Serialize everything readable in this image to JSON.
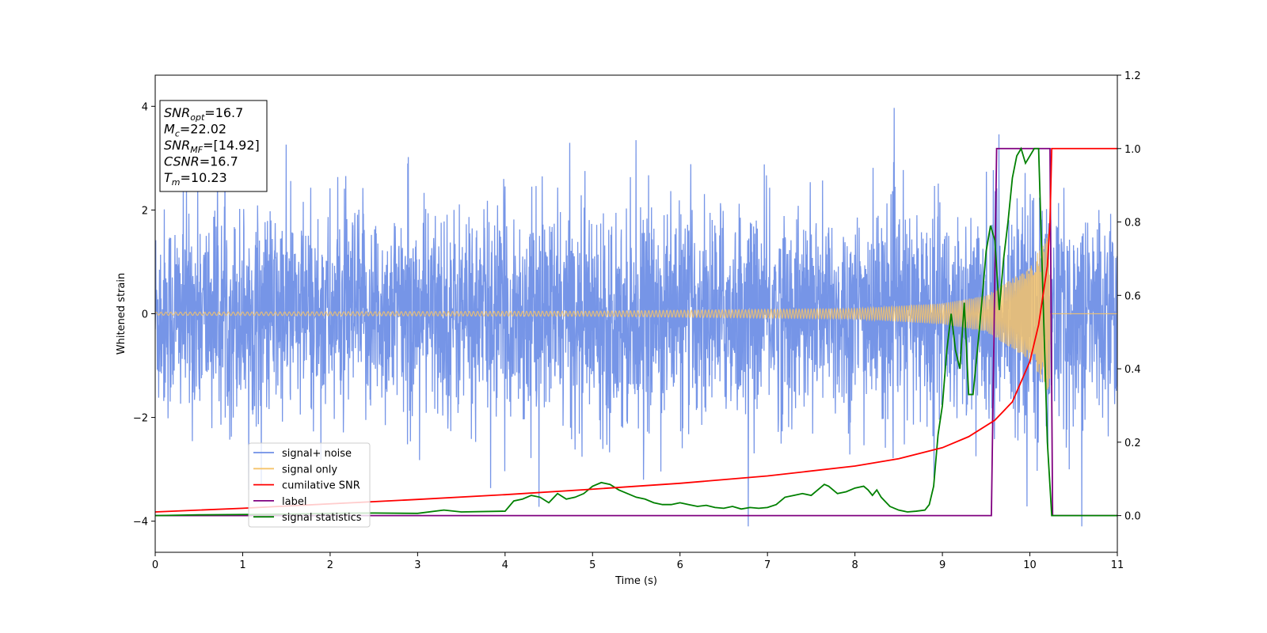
{
  "chart_data": {
    "type": "line",
    "xlabel": "Time (s)",
    "ylabel": "Whitened strain",
    "xlim": [
      0,
      11
    ],
    "ylim_left": [
      -4.6,
      4.6
    ],
    "ylim_right": [
      -0.1,
      1.2
    ],
    "x_ticks": [
      0,
      1,
      2,
      3,
      4,
      5,
      6,
      7,
      8,
      9,
      10,
      11
    ],
    "y_left_ticks": [
      -4,
      -2,
      0,
      2,
      4
    ],
    "y_left_tick_labels": [
      "−4",
      "−2",
      "0",
      "2",
      "4"
    ],
    "y_right_ticks": [
      0.0,
      0.2,
      0.4,
      0.6,
      0.8,
      1.0,
      1.2
    ],
    "y_right_tick_labels": [
      "0.0",
      "0.2",
      "0.4",
      "0.6",
      "0.8",
      "1.0",
      "1.2"
    ],
    "legend_position": "lower-left",
    "grid": false,
    "info_box": [
      {
        "base": "SNR",
        "sub": "opt",
        "rest": "=16.7"
      },
      {
        "base": "M",
        "sub": "c",
        "rest": "=22.02"
      },
      {
        "base": "SNR",
        "sub": "MF",
        "rest": "=[14.92]"
      },
      {
        "base": "CSNR",
        "sub": "",
        "rest": "=16.7"
      },
      {
        "base": "T",
        "sub": "m",
        "rest": "=10.23"
      }
    ],
    "merger_time": 10.23,
    "series": [
      {
        "name": "signal+ noise",
        "axis": "left",
        "color": "#6f8fe6",
        "approx_range": [
          -4.1,
          4.15
        ]
      },
      {
        "name": "signal only",
        "axis": "left",
        "color": "#f5c36b",
        "envelope": {
          "t": [
            0,
            5,
            8,
            9,
            9.5,
            10,
            10.23
          ],
          "amp": [
            0.03,
            0.05,
            0.1,
            0.2,
            0.35,
            0.9,
            1.6
          ]
        }
      },
      {
        "name": "cumilative SNR",
        "axis": "right",
        "color": "#ff0000",
        "x": [
          0,
          1,
          2,
          3,
          4,
          5,
          6,
          7,
          8,
          8.5,
          9,
          9.3,
          9.6,
          9.8,
          10,
          10.1,
          10.2,
          10.23,
          10.25,
          11
        ],
        "values": [
          0.01,
          0.02,
          0.032,
          0.044,
          0.057,
          0.072,
          0.088,
          0.108,
          0.135,
          0.155,
          0.185,
          0.215,
          0.26,
          0.31,
          0.42,
          0.52,
          0.68,
          0.8,
          1.0,
          1.0
        ]
      },
      {
        "name": "label",
        "axis": "right",
        "color": "#800080",
        "x": [
          0,
          9.56,
          9.62,
          10.23,
          10.26,
          11
        ],
        "values": [
          0.0,
          0.0,
          1.0,
          1.0,
          0.0,
          0.0
        ]
      },
      {
        "name": "signal statistics",
        "axis": "right",
        "color": "#008000",
        "x": [
          0,
          0.5,
          1.0,
          1.5,
          2.0,
          2.5,
          3.0,
          3.3,
          3.5,
          4.0,
          4.1,
          4.2,
          4.3,
          4.4,
          4.5,
          4.6,
          4.7,
          4.8,
          4.9,
          5.0,
          5.1,
          5.2,
          5.3,
          5.4,
          5.5,
          5.6,
          5.7,
          5.8,
          5.9,
          6.0,
          6.1,
          6.2,
          6.3,
          6.4,
          6.5,
          6.6,
          6.7,
          6.8,
          6.9,
          7.0,
          7.1,
          7.2,
          7.3,
          7.4,
          7.5,
          7.6,
          7.65,
          7.7,
          7.8,
          7.9,
          8.0,
          8.1,
          8.15,
          8.2,
          8.25,
          8.3,
          8.4,
          8.5,
          8.6,
          8.7,
          8.8,
          8.85,
          8.9,
          8.95,
          9.0,
          9.05,
          9.1,
          9.15,
          9.2,
          9.25,
          9.3,
          9.35,
          9.4,
          9.45,
          9.5,
          9.55,
          9.6,
          9.65,
          9.7,
          9.75,
          9.8,
          9.85,
          9.9,
          9.95,
          10.0,
          10.05,
          10.1,
          10.15,
          10.2,
          10.25,
          10.3,
          10.35,
          10.5,
          11.0
        ],
        "values": [
          0.0,
          0.002,
          0.003,
          0.004,
          0.006,
          0.007,
          0.006,
          0.015,
          0.01,
          0.012,
          0.04,
          0.045,
          0.055,
          0.05,
          0.035,
          0.06,
          0.045,
          0.05,
          0.06,
          0.08,
          0.09,
          0.085,
          0.07,
          0.06,
          0.05,
          0.045,
          0.035,
          0.03,
          0.03,
          0.035,
          0.03,
          0.025,
          0.028,
          0.022,
          0.02,
          0.025,
          0.018,
          0.022,
          0.02,
          0.022,
          0.03,
          0.05,
          0.055,
          0.06,
          0.055,
          0.075,
          0.085,
          0.08,
          0.06,
          0.065,
          0.075,
          0.08,
          0.07,
          0.055,
          0.07,
          0.05,
          0.025,
          0.015,
          0.01,
          0.012,
          0.015,
          0.03,
          0.08,
          0.22,
          0.3,
          0.45,
          0.55,
          0.45,
          0.4,
          0.58,
          0.33,
          0.33,
          0.45,
          0.58,
          0.72,
          0.79,
          0.75,
          0.56,
          0.7,
          0.8,
          0.92,
          0.98,
          1.0,
          0.96,
          0.98,
          1.0,
          1.0,
          0.6,
          0.2,
          0.0,
          0.0,
          0.0,
          0.0,
          0.0
        ]
      }
    ]
  }
}
